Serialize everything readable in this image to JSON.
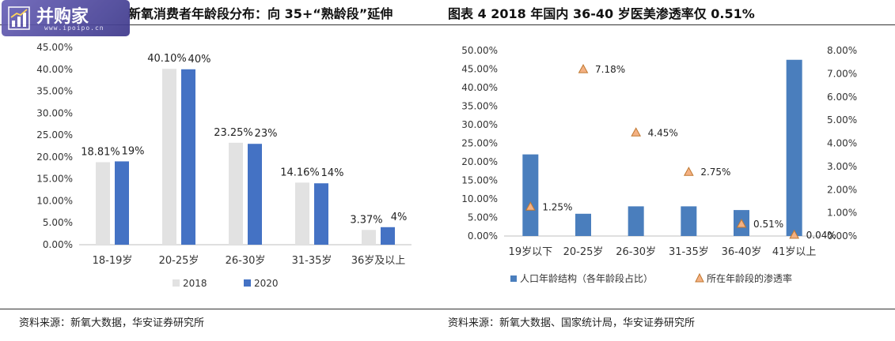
{
  "left_title": "新氧消费者年龄段分布：向 35+“熟龄段”延伸",
  "right_title": "图表 4 2018 年国内 36-40 岁医美渗透率仅 0.51%",
  "left_source": "资料来源：新氧大数据，华安证券研究所",
  "right_source": "资料来源：新氧大数据、国家统计局，华安证券研究所",
  "watermark": {
    "text": "并购家",
    "url": "www.ipoipo.cn"
  },
  "colors": {
    "bar_2018": "#e2e2e2",
    "bar_2020": "#4472c4",
    "bar_population": "#4a7ebd",
    "triangle_fill": "#f4b183",
    "triangle_stroke": "#c07830"
  },
  "chart_data": [
    {
      "type": "bar",
      "categories": [
        "18-19岁",
        "20-25岁",
        "26-30岁",
        "31-35岁",
        "36岁及以上"
      ],
      "series": [
        {
          "name": "2018",
          "values": [
            18.81,
            40.1,
            23.25,
            14.16,
            3.37
          ],
          "labels": [
            "18.81%",
            "40.10%",
            "23.25%",
            "14.16%",
            "3.37%"
          ]
        },
        {
          "name": "2020",
          "values": [
            19,
            40,
            23,
            14,
            4
          ],
          "labels": [
            "19%",
            "40%",
            "23%",
            "14%",
            "4%"
          ]
        }
      ],
      "ylim": [
        0,
        45
      ],
      "yticks": [
        "0.00%",
        "5.00%",
        "10.00%",
        "15.00%",
        "20.00%",
        "25.00%",
        "30.00%",
        "35.00%",
        "40.00%",
        "45.00%"
      ],
      "legend": "bottom",
      "grid": false
    },
    {
      "type": "bar",
      "categories": [
        "19岁以下",
        "20-25岁",
        "26-30岁",
        "31-35岁",
        "36-40岁",
        "41岁以上"
      ],
      "series": [
        {
          "name": "人口年龄结构（各年龄段占比）",
          "axis": "left",
          "kind": "bar",
          "values": [
            22,
            6,
            8,
            8,
            7,
            47.5
          ]
        },
        {
          "name": "所在年龄段的渗透率",
          "axis": "right",
          "kind": "marker-triangle",
          "values": [
            1.25,
            7.18,
            4.45,
            2.75,
            0.51,
            0.04
          ],
          "labels": [
            "1.25%",
            "7.18%",
            "4.45%",
            "2.75%",
            "0.51%",
            "0.04%"
          ]
        }
      ],
      "ylim_left": [
        0,
        50
      ],
      "ylim_right": [
        0,
        8
      ],
      "yticks_left": [
        "0.00%",
        "5.00%",
        "10.00%",
        "15.00%",
        "20.00%",
        "25.00%",
        "30.00%",
        "35.00%",
        "40.00%",
        "45.00%",
        "50.00%"
      ],
      "yticks_right": [
        "0.00%",
        "1.00%",
        "2.00%",
        "3.00%",
        "4.00%",
        "5.00%",
        "6.00%",
        "7.00%",
        "8.00%"
      ],
      "legend": "bottom",
      "grid": false
    }
  ]
}
